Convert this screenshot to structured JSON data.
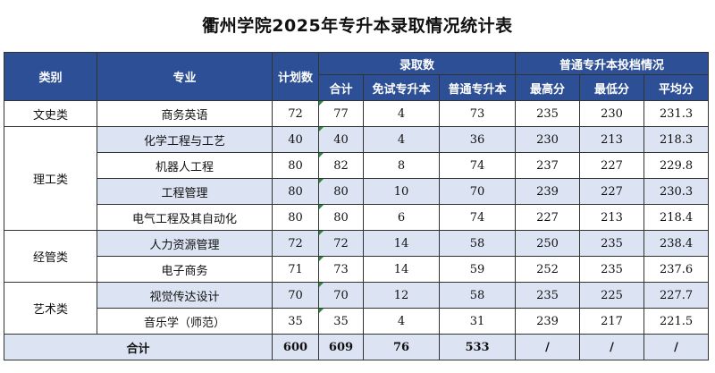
{
  "title": "衢州学院2025年专升本录取情况统计表",
  "headers": {
    "category": "类别",
    "major": "专业",
    "plan": "计划数",
    "admitted": "录取数",
    "total": "合计",
    "exempt": "免试专升本",
    "regular": "普通专升本",
    "scores_group": "普通专升本投档情况",
    "max": "最高分",
    "min": "最低分",
    "avg": "平均分"
  },
  "categories": [
    {
      "name": "文史类",
      "rows": [
        {
          "major": "商务英语",
          "plan": "72",
          "total": "77",
          "exempt": "4",
          "regular": "73",
          "max": "235",
          "min": "230",
          "avg": "231.3"
        }
      ]
    },
    {
      "name": "理工类",
      "rows": [
        {
          "major": "化学工程与工艺",
          "plan": "40",
          "total": "40",
          "exempt": "4",
          "regular": "36",
          "max": "230",
          "min": "213",
          "avg": "218.3"
        },
        {
          "major": "机器人工程",
          "plan": "80",
          "total": "82",
          "exempt": "8",
          "regular": "74",
          "max": "237",
          "min": "227",
          "avg": "229.8"
        },
        {
          "major": "工程管理",
          "plan": "80",
          "total": "80",
          "exempt": "10",
          "regular": "70",
          "max": "239",
          "min": "227",
          "avg": "230.3"
        },
        {
          "major": "电气工程及其自动化",
          "plan": "80",
          "total": "80",
          "exempt": "6",
          "regular": "74",
          "max": "227",
          "min": "213",
          "avg": "218.4"
        }
      ]
    },
    {
      "name": "经管类",
      "rows": [
        {
          "major": "人力资源管理",
          "plan": "72",
          "total": "72",
          "exempt": "14",
          "regular": "58",
          "max": "250",
          "min": "235",
          "avg": "238.4"
        },
        {
          "major": "电子商务",
          "plan": "71",
          "total": "73",
          "exempt": "14",
          "regular": "59",
          "max": "252",
          "min": "235",
          "avg": "237.6"
        }
      ]
    },
    {
      "name": "艺术类",
      "rows": [
        {
          "major": "视觉传达设计",
          "plan": "70",
          "total": "70",
          "exempt": "12",
          "regular": "58",
          "max": "235",
          "min": "225",
          "avg": "227.7"
        },
        {
          "major": "音乐学（师范）",
          "plan": "35",
          "total": "35",
          "exempt": "4",
          "regular": "31",
          "max": "239",
          "min": "217",
          "avg": "221.5"
        }
      ]
    }
  ],
  "total_row": {
    "label": "合计",
    "plan": "600",
    "total": "609",
    "exempt": "76",
    "regular": "533",
    "max": "/",
    "min": "/",
    "avg": "/"
  }
}
